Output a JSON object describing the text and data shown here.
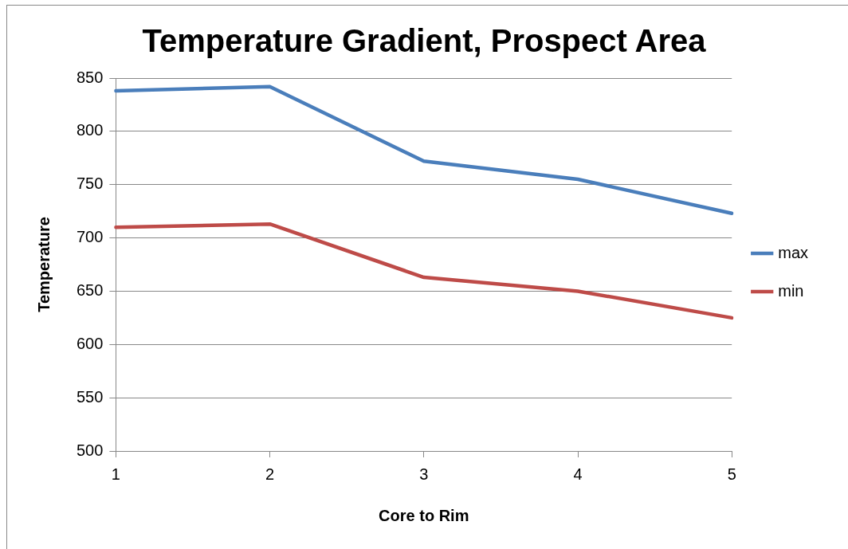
{
  "chart_data": {
    "type": "line",
    "title": "Temperature Gradient, Prospect Area",
    "xlabel": "Core to Rim",
    "ylabel": "Temperature",
    "categories": [
      "1",
      "2",
      "3",
      "4",
      "5"
    ],
    "series": [
      {
        "name": "max",
        "color": "#4a7ebb",
        "values": [
          838,
          842,
          772,
          755,
          723
        ]
      },
      {
        "name": "min",
        "color": "#be4b48",
        "values": [
          710,
          713,
          663,
          650,
          625
        ]
      }
    ],
    "ylim": [
      500,
      850
    ],
    "yticks": [
      500,
      550,
      600,
      650,
      700,
      750,
      800,
      850
    ],
    "grid": "y",
    "legend": "right",
    "marker": "none"
  }
}
